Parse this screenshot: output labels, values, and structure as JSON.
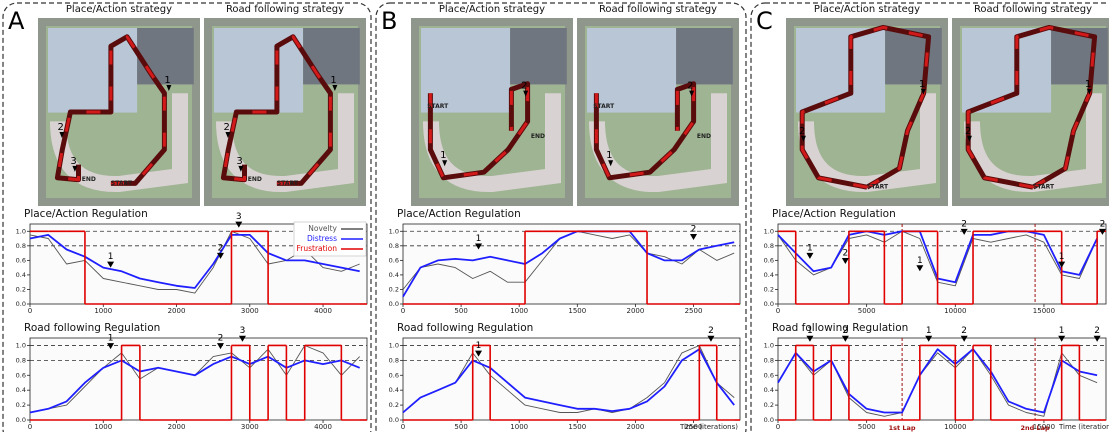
{
  "panels": [
    {
      "label": "A",
      "maps": [
        {
          "title": "Place/Action strategy",
          "labels": [
            "1",
            "2",
            "3",
            "END",
            "START"
          ]
        },
        {
          "title": "Road following strategy",
          "labels": [
            "1",
            "2",
            "3",
            "END",
            "START"
          ]
        }
      ]
    },
    {
      "label": "B",
      "maps": [
        {
          "title": "Place/Action strategy",
          "labels": [
            "START",
            "1",
            "2",
            "END"
          ]
        },
        {
          "title": "Road following strategy",
          "labels": [
            "START",
            "1",
            "2",
            "END"
          ]
        }
      ]
    },
    {
      "label": "C",
      "maps": [
        {
          "title": "Place/Action strategy",
          "labels": [
            "1",
            "2",
            "START"
          ]
        },
        {
          "title": "Road following strategy",
          "labels": [
            "1",
            "2",
            "START"
          ]
        }
      ]
    }
  ],
  "chart_data": [
    {
      "type": "line",
      "title": "Place/Action Regulation",
      "legend": "upper right",
      "x": [
        0,
        250,
        500,
        750,
        1000,
        1250,
        1500,
        1750,
        2000,
        2250,
        2500,
        2750,
        3000,
        3250,
        3500,
        3750,
        4000,
        4250,
        4500
      ],
      "xlim": [
        0,
        4600
      ],
      "xticks": [
        0,
        1000,
        2000,
        3000,
        4000
      ],
      "ylim": [
        0,
        1.1
      ],
      "yticks": [
        {
          "value": 0,
          "label": "0.0"
        },
        0.2,
        0.4,
        0.6,
        0.8,
        {
          "value": 1,
          "label": "1.0"
        }
      ],
      "hlines": [
        0.8,
        1
      ],
      "series": [
        {
          "name": "Novelty",
          "color": "#555555",
          "values": [
            0.95,
            0.9,
            0.55,
            0.6,
            0.35,
            0.3,
            0.25,
            0.2,
            0.2,
            0.15,
            0.5,
            1.0,
            0.9,
            0.55,
            0.6,
            0.75,
            0.5,
            0.45,
            0.55
          ]
        },
        {
          "name": "Distress",
          "color": "#1f1fff",
          "values": [
            0.9,
            0.95,
            0.75,
            0.65,
            0.5,
            0.45,
            0.35,
            0.3,
            0.25,
            0.22,
            0.55,
            0.95,
            0.95,
            0.7,
            0.6,
            0.6,
            0.55,
            0.5,
            0.45
          ]
        },
        {
          "name": "Frustration",
          "color": "#e00000",
          "step": true,
          "values": [
            1,
            1,
            1,
            0,
            0,
            0,
            0,
            0,
            0,
            0,
            0,
            1,
            1,
            0,
            0,
            0,
            0,
            0,
            0
          ]
        }
      ],
      "annotations": [
        {
          "x": 1100,
          "y": 0.5,
          "label": "1"
        },
        {
          "x": 2600,
          "y": 0.62,
          "label": "2"
        },
        {
          "x": 2850,
          "y": 1.05,
          "label": "3"
        }
      ]
    },
    {
      "type": "line",
      "title": "Road following Regulation",
      "x": [
        0,
        250,
        500,
        750,
        1000,
        1250,
        1500,
        1750,
        2000,
        2250,
        2500,
        2750,
        3000,
        3250,
        3500,
        3750,
        4000,
        4250,
        4500
      ],
      "xlim": [
        0,
        4600
      ],
      "xticks": [
        0,
        1000,
        2000,
        3000,
        4000
      ],
      "ylim": [
        0,
        1.1
      ],
      "yticks": [
        {
          "value": 0,
          "label": "0.0"
        },
        0.2,
        0.4,
        0.6,
        0.8,
        {
          "value": 1,
          "label": "1.0"
        }
      ],
      "hlines": [
        0.8,
        1
      ],
      "series": [
        {
          "name": "Novelty",
          "color": "#555555",
          "values": [
            0.1,
            0.15,
            0.2,
            0.45,
            0.7,
            0.9,
            0.55,
            0.7,
            0.65,
            0.6,
            0.85,
            0.9,
            0.7,
            0.95,
            0.6,
            1.0,
            0.9,
            0.6,
            0.85
          ]
        },
        {
          "name": "Distress",
          "color": "#1f1fff",
          "values": [
            0.1,
            0.15,
            0.25,
            0.5,
            0.7,
            0.8,
            0.65,
            0.7,
            0.65,
            0.6,
            0.75,
            0.85,
            0.75,
            0.85,
            0.7,
            0.8,
            0.75,
            0.8,
            0.7
          ]
        },
        {
          "name": "Frustration",
          "color": "#e00000",
          "step": true,
          "values": [
            0,
            0,
            0,
            0,
            0,
            1,
            0,
            0,
            0,
            0,
            0,
            1,
            0,
            1,
            0,
            1,
            1,
            0,
            0
          ]
        }
      ],
      "annotations": [
        {
          "x": 1100,
          "y": 0.95,
          "label": "1"
        },
        {
          "x": 2600,
          "y": 0.95,
          "label": "2"
        },
        {
          "x": 2900,
          "y": 1.05,
          "label": "3"
        }
      ]
    },
    {
      "type": "line",
      "title": "Place/Action Regulation",
      "x": [
        0,
        150,
        300,
        450,
        600,
        750,
        900,
        1050,
        1200,
        1350,
        1500,
        1650,
        1800,
        1950,
        2100,
        2250,
        2400,
        2550,
        2700,
        2850
      ],
      "xlim": [
        0,
        2900
      ],
      "xticks": [
        0,
        500,
        1000,
        1500,
        2000,
        2500
      ],
      "ylim": [
        0,
        1.1
      ],
      "yticks": [
        {
          "value": 0,
          "label": "0.0"
        },
        0.2,
        0.4,
        0.6,
        0.8,
        {
          "value": 1,
          "label": "1.0"
        }
      ],
      "hlines": [
        0.8,
        1
      ],
      "series": [
        {
          "name": "Novelty",
          "color": "#555555",
          "values": [
            0.2,
            0.5,
            0.55,
            0.5,
            0.35,
            0.45,
            0.3,
            0.3,
            0.6,
            0.9,
            1.0,
            0.95,
            0.9,
            0.95,
            0.7,
            0.65,
            0.55,
            0.75,
            0.6,
            0.7
          ]
        },
        {
          "name": "Distress",
          "color": "#1f1fff",
          "values": [
            0.1,
            0.5,
            0.6,
            0.62,
            0.6,
            0.65,
            0.6,
            0.55,
            0.7,
            0.9,
            1.0,
            1.0,
            1.0,
            1.0,
            0.7,
            0.6,
            0.6,
            0.75,
            0.8,
            0.85
          ]
        },
        {
          "name": "Frustration",
          "color": "#e00000",
          "step": true,
          "values": [
            0,
            0,
            0,
            0,
            0,
            0,
            0,
            1,
            1,
            1,
            1,
            1,
            1,
            1,
            0,
            0,
            0,
            0,
            0,
            0
          ]
        }
      ],
      "annotations": [
        {
          "x": 650,
          "y": 0.75,
          "label": "1"
        },
        {
          "x": 2500,
          "y": 0.88,
          "label": "2"
        }
      ]
    },
    {
      "type": "line",
      "title": "Road following Regulation",
      "xlabel": "Time (iterations)",
      "x": [
        0,
        150,
        300,
        450,
        600,
        750,
        900,
        1050,
        1200,
        1350,
        1500,
        1650,
        1800,
        1950,
        2100,
        2250,
        2400,
        2550,
        2700,
        2850
      ],
      "xlim": [
        0,
        2900
      ],
      "xticks": [
        0,
        500,
        1000,
        1500,
        2000,
        2500
      ],
      "ylim": [
        0,
        1.1
      ],
      "yticks": [
        {
          "value": 0,
          "label": "0.0"
        },
        0.2,
        0.4,
        0.6,
        0.8,
        {
          "value": 1,
          "label": "1.0"
        }
      ],
      "hlines": [
        0.8,
        1
      ],
      "series": [
        {
          "name": "Novelty",
          "color": "#555555",
          "values": [
            0.1,
            0.3,
            0.4,
            0.5,
            0.9,
            0.6,
            0.4,
            0.2,
            0.15,
            0.1,
            0.1,
            0.15,
            0.1,
            0.15,
            0.3,
            0.5,
            0.9,
            1.0,
            0.5,
            0.3
          ]
        },
        {
          "name": "Distress",
          "color": "#1f1fff",
          "values": [
            0.1,
            0.3,
            0.4,
            0.5,
            0.8,
            0.7,
            0.5,
            0.3,
            0.25,
            0.2,
            0.15,
            0.15,
            0.12,
            0.15,
            0.25,
            0.45,
            0.8,
            0.95,
            0.5,
            0.2
          ]
        },
        {
          "name": "Frustration",
          "color": "#e00000",
          "step": true,
          "values": [
            0,
            0,
            0,
            0,
            1,
            0,
            0,
            0,
            0,
            0,
            0,
            0,
            0,
            0,
            0,
            0,
            0,
            1,
            0,
            0
          ]
        }
      ],
      "annotations": [
        {
          "x": 650,
          "y": 0.85,
          "label": "1"
        },
        {
          "x": 2650,
          "y": 1.05,
          "label": "2"
        }
      ]
    },
    {
      "type": "line",
      "title": "Place/Action Regulation",
      "x": [
        0,
        1000,
        2000,
        3000,
        4000,
        5000,
        6000,
        7000,
        8000,
        9000,
        10000,
        11000,
        12000,
        13000,
        14000,
        15000,
        16000,
        17000,
        18000
      ],
      "xlim": [
        0,
        18500
      ],
      "xticks": [
        0,
        5000,
        10000,
        15000
      ],
      "ylim": [
        0,
        1.1
      ],
      "yticks": [
        {
          "value": 0,
          "label": "0.0"
        },
        0.2,
        0.4,
        0.6,
        0.8,
        {
          "value": 1,
          "label": "1.0"
        }
      ],
      "hlines": [
        0.8,
        1
      ],
      "vlines": [
        {
          "x": 7000
        },
        {
          "x": 14500
        }
      ],
      "series": [
        {
          "name": "Novelty",
          "color": "#555555",
          "values": [
            0.95,
            0.6,
            0.4,
            0.5,
            0.9,
            0.95,
            0.85,
            1.0,
            0.9,
            0.3,
            0.25,
            0.9,
            0.85,
            0.9,
            0.95,
            0.85,
            0.4,
            0.35,
            0.9
          ]
        },
        {
          "name": "Distress",
          "color": "#1f1fff",
          "values": [
            0.95,
            0.7,
            0.45,
            0.5,
            0.95,
            1.0,
            0.95,
            1.0,
            1.0,
            0.35,
            0.3,
            0.95,
            0.95,
            1.0,
            1.0,
            0.95,
            0.45,
            0.4,
            0.9
          ]
        },
        {
          "name": "Frustration",
          "color": "#e00000",
          "step": true,
          "values": [
            1,
            0,
            0,
            0,
            1,
            1,
            0,
            1,
            1,
            0,
            0,
            1,
            1,
            1,
            1,
            1,
            0,
            0,
            1
          ]
        }
      ],
      "annotations": [
        {
          "x": 1800,
          "y": 0.62,
          "label": "1"
        },
        {
          "x": 3800,
          "y": 0.55,
          "label": "2"
        },
        {
          "x": 8000,
          "y": 0.45,
          "label": "1"
        },
        {
          "x": 10500,
          "y": 0.95,
          "label": "2"
        },
        {
          "x": 16000,
          "y": 0.5,
          "label": "1"
        },
        {
          "x": 18300,
          "y": 0.95,
          "label": "2"
        }
      ]
    },
    {
      "type": "line",
      "title": "Road following Regulation",
      "xlabel": "Time (iterations)",
      "x": [
        0,
        1000,
        2000,
        3000,
        4000,
        5000,
        6000,
        7000,
        8000,
        9000,
        10000,
        11000,
        12000,
        13000,
        14000,
        15000,
        16000,
        17000,
        18000
      ],
      "xlim": [
        0,
        18500
      ],
      "xticks": [
        0,
        5000,
        10000,
        15000
      ],
      "ylim": [
        0,
        1.1
      ],
      "yticks": [
        {
          "value": 0,
          "label": "0.0"
        },
        0.2,
        0.4,
        0.6,
        0.8,
        {
          "value": 1,
          "label": "1.0"
        }
      ],
      "hlines": [
        0.8,
        1
      ],
      "vlines": [
        {
          "x": 7000,
          "label": "1st Lap"
        },
        {
          "x": 14500,
          "label": "2nd Lap"
        }
      ],
      "series": [
        {
          "name": "Novelty",
          "color": "#555555",
          "values": [
            0.5,
            0.9,
            0.6,
            0.8,
            0.3,
            0.1,
            0.05,
            0.1,
            0.6,
            0.9,
            0.7,
            0.95,
            0.6,
            0.2,
            0.1,
            0.05,
            0.9,
            0.6,
            0.5
          ]
        },
        {
          "name": "Distress",
          "color": "#1f1fff",
          "values": [
            0.5,
            0.9,
            0.65,
            0.8,
            0.35,
            0.15,
            0.1,
            0.1,
            0.6,
            0.95,
            0.75,
            0.95,
            0.65,
            0.25,
            0.15,
            0.1,
            0.8,
            0.65,
            0.6
          ]
        },
        {
          "name": "Frustration",
          "color": "#e00000",
          "step": true,
          "values": [
            0,
            1,
            0,
            1,
            0,
            0,
            0,
            0,
            1,
            1,
            0,
            1,
            0,
            0,
            0,
            0,
            1,
            0,
            0
          ]
        }
      ],
      "annotations": [
        {
          "x": 1800,
          "y": 1.05,
          "label": "1"
        },
        {
          "x": 3800,
          "y": 1.05,
          "label": "2"
        },
        {
          "x": 8500,
          "y": 1.05,
          "label": "1"
        },
        {
          "x": 10500,
          "y": 1.05,
          "label": "2"
        },
        {
          "x": 16000,
          "y": 1.05,
          "label": "1"
        },
        {
          "x": 18000,
          "y": 1.05,
          "label": "2"
        }
      ]
    }
  ]
}
